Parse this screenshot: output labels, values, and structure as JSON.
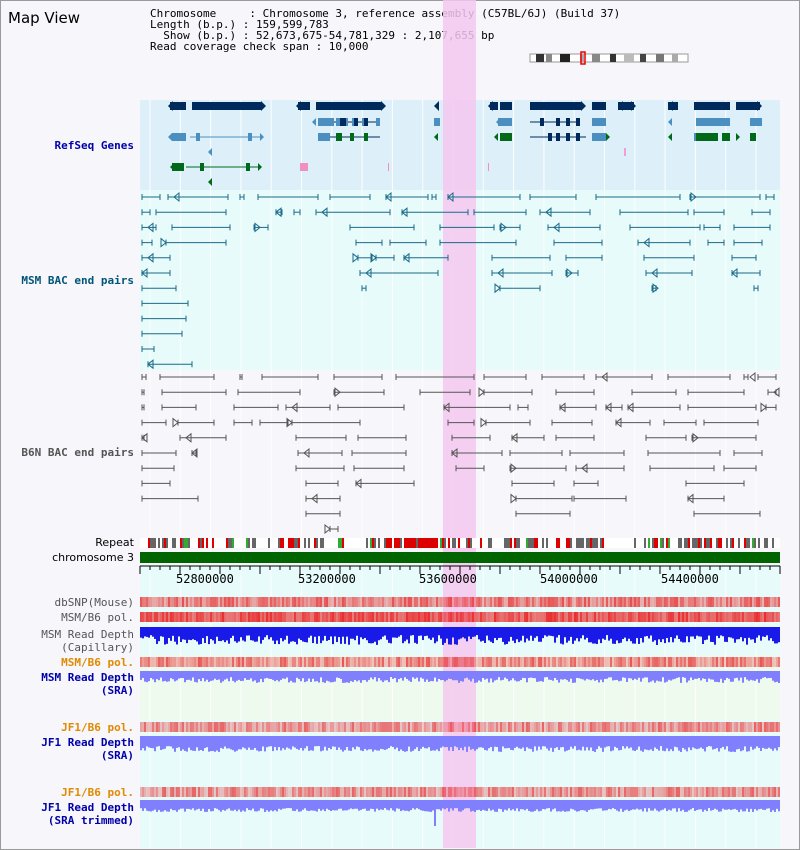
{
  "title": "Map View",
  "info": {
    "chromosome_line": "Chromosome     : Chromosome 3, reference assembly (C57BL/6J) (Build 37)",
    "length_line": "Length (b.p.) : 159,599,783",
    "show_line": "  Show (b.p.) : 52,673,675-54,781,329 : 2,107,655 bp",
    "coverage_line": "Read coverage check span : 10,000"
  },
  "tracks": {
    "refseq": "RefSeq Genes",
    "msm_bac": "MSM BAC end pairs",
    "b6n_bac": "B6N BAC end pairs",
    "repeat": "Repeat",
    "chromosome": "chromosome 3",
    "dbsnp": "dbSNP(Mouse)",
    "msm_b6_pol_1": "MSM/B6 pol.",
    "msm_read_depth_cap": "MSM Read Depth\n(Capillary)",
    "msm_b6_pol_2": "MSM/B6 pol.",
    "msm_read_depth_sra": "MSM Read Depth\n(SRA)",
    "jf1_b6_pol_1": "JF1/B6 pol.",
    "jf1_read_depth_sra": "JF1 Read Depth\n(SRA)",
    "jf1_b6_pol_2": "JF1/B6 pol.",
    "jf1_read_depth_trim": "JF1 Read Depth\n(SRA trimmed)"
  },
  "axis": {
    "ticks": [
      "52800000",
      "53200000",
      "53600000",
      "54000000",
      "54400000"
    ]
  },
  "colors": {
    "gene_dark": "#002a5c",
    "gene_mid": "#4a8fbf",
    "gene_green": "#006a1a",
    "bac_msm": "#1a6a8a",
    "bac_b6n": "#555555",
    "highlight": "#f5c8ef",
    "depth_blue": "#1a1ae8",
    "depth_light": "#8080ff",
    "pol_red": "#e83030"
  }
}
